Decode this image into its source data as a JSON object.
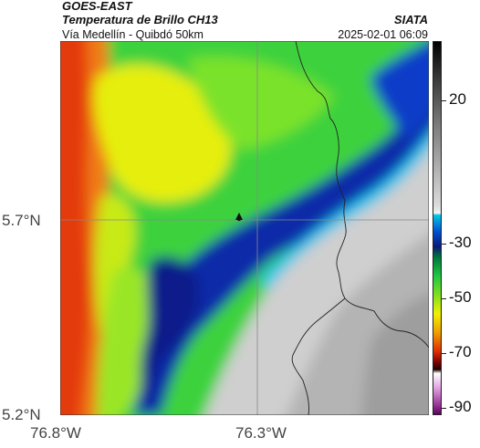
{
  "header": {
    "satellite": "GOES-EAST",
    "product": "Temperatura de Brillo CH13",
    "route": "Vía Medellín - Quibdó 50km",
    "agency": "SIATA",
    "datetime": "2025-02-01 06:09"
  },
  "map": {
    "lat_labels": [
      "5.7°N",
      "5.2°N"
    ],
    "lon_labels": [
      "76.8°W",
      "76.3°W"
    ],
    "marker": "location-marker"
  },
  "colorbar": {
    "tick_labels": [
      "20",
      "-30",
      "-50",
      "-70",
      "-90"
    ],
    "colors": [
      "#000000",
      "#808080",
      "#f2f2f2",
      "#00c8e8",
      "#0a1a7a",
      "#22c840",
      "#f0f000",
      "#e03000",
      "#200000",
      "#a040a0"
    ]
  }
}
